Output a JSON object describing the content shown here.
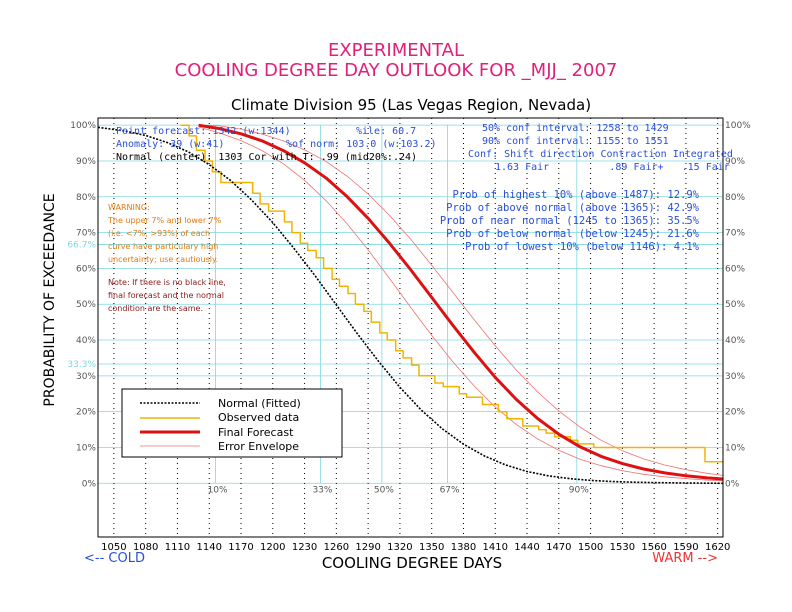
{
  "header": {
    "line1": "EXPERIMENTAL",
    "line2": "COOLING DEGREE DAY OUTLOOK FOR _MJJ_ 2007",
    "subtitle": "Climate Division 95 (Las Vegas Region, Nevada)"
  },
  "stats": {
    "point_forecast": "Point forecast: 1342 (w:1344)",
    "percentile": "%ile: 60.7",
    "anomaly": "Anomaly: 39 (w:41)",
    "pct_normal": "%of norm: 103.0 (w:103.2)",
    "normal_center": "Normal (center): 1303 Cor with T: .99 (mid20%:.24)",
    "conf50": "50% conf interval: 1258 to 1429",
    "conf90": "90% conf interval: 1155 to 1551",
    "conf_header": "Conf: Shift direction  Contraction  Integrated",
    "conf_values": "1.63 Fair          .89 Fair+   .15 Fair"
  },
  "probabilities": [
    "Prob of highest 10% (above 1487): 12.9%",
    "Prob of above normal (above 1365): 42.9%",
    "Prob of near normal (1245 to 1365): 35.5%",
    "Prob of below normal (below 1245): 21.6%",
    "Prob of lowest 10% (below 1146): 4.1%"
  ],
  "warning": {
    "lines": [
      "WARNING:",
      "The upper 7% and lower 7%",
      "(i.e. <7%, >93%) of each",
      "curve have particulary high",
      "uncertainty; use cautiously."
    ],
    "note": [
      "Note: If there is no black line,",
      "final forecast and  the normal",
      "condition are the same."
    ]
  },
  "legend": {
    "normal": "Normal (Fitted)",
    "observed": "Observed data",
    "forecast": "Final Forecast",
    "envelope": "Error Envelope"
  },
  "footer": {
    "cold": "<-- COLD",
    "warm": "WARM -->"
  },
  "colors": {
    "title": "#e0207a",
    "blue": "#2a4fd6",
    "warning_orange": "#e07a10",
    "warning_dark": "#8b1a1a",
    "cyan": "#7fd8e0",
    "normal": "#000000",
    "observed": "#f2b400",
    "forecast": "#dd1111",
    "envelope": "#f07070",
    "warm": "#ee3333"
  },
  "chart_data": {
    "type": "line",
    "title": "Climate Division 95 (Las Vegas Region, Nevada)",
    "xlabel": "COOLING DEGREE DAYS",
    "ylabel": "PROBABILITY OF EXCEEDANCE",
    "xlim": [
      1035,
      1625
    ],
    "ylim": [
      -15,
      102
    ],
    "x_ticks": [
      1050,
      1080,
      1110,
      1140,
      1170,
      1200,
      1230,
      1260,
      1290,
      1320,
      1350,
      1380,
      1410,
      1440,
      1470,
      1500,
      1530,
      1560,
      1590,
      1620
    ],
    "y_ticks_left": [
      "0%",
      "10%",
      "20%",
      "30%",
      "40%",
      "50%",
      "60%",
      "70%",
      "80%",
      "90%",
      "100%"
    ],
    "y_ticks_right": [
      "0%",
      "10%",
      "20%",
      "30%",
      "40%",
      "50%",
      "60%",
      "70%",
      "80%",
      "90%",
      "100%"
    ],
    "y_tick_values": [
      0,
      10,
      20,
      30,
      40,
      50,
      60,
      70,
      80,
      90,
      100
    ],
    "percentile_lines": [
      {
        "x": 1146,
        "label": "10%"
      },
      {
        "x": 1245,
        "label": "33%"
      },
      {
        "x": 1303,
        "label": "50%"
      },
      {
        "x": 1365,
        "label": "67%"
      },
      {
        "x": 1487,
        "label": "90%"
      }
    ],
    "prob_lines": [
      {
        "y": 66.7,
        "label": "66.7%"
      },
      {
        "y": 33.3,
        "label": "33.3%"
      }
    ],
    "series": [
      {
        "name": "Normal (Fitted)",
        "x": [
          1035,
          1060,
          1080,
          1100,
          1120,
          1140,
          1160,
          1180,
          1200,
          1220,
          1240,
          1260,
          1280,
          1300,
          1320,
          1340,
          1360,
          1380,
          1400,
          1420,
          1440,
          1460,
          1480,
          1500,
          1520,
          1540,
          1560,
          1580,
          1600,
          1625
        ],
        "y": [
          99.4,
          98.4,
          97.1,
          95.2,
          92.6,
          89.0,
          84.6,
          79.1,
          72.8,
          65.6,
          57.9,
          49.8,
          41.7,
          34.0,
          26.8,
          20.5,
          15.2,
          10.9,
          7.6,
          5.1,
          3.3,
          2.1,
          1.3,
          0.8,
          0.5,
          0.3,
          0.2,
          0.1,
          0.05,
          0.0
        ]
      },
      {
        "name": "Observed data",
        "x": [
          1113,
          1121,
          1128,
          1136,
          1143,
          1151,
          1158,
          1166,
          1173,
          1181,
          1188,
          1196,
          1203,
          1211,
          1218,
          1226,
          1233,
          1241,
          1248,
          1256,
          1263,
          1271,
          1278,
          1286,
          1293,
          1301,
          1308,
          1316,
          1323,
          1331,
          1338,
          1346,
          1353,
          1361,
          1368,
          1376,
          1383,
          1391,
          1398,
          1406,
          1413,
          1421,
          1428,
          1436,
          1443,
          1451,
          1458,
          1466,
          1473,
          1481,
          1488,
          1496,
          1503,
          1511,
          1518,
          1526,
          1533,
          1541,
          1548,
          1556,
          1563,
          1571,
          1578,
          1586,
          1593,
          1601,
          1608,
          1616,
          1625
        ],
        "y": [
          100,
          97,
          93,
          90,
          87,
          84,
          84,
          84,
          84,
          81,
          78,
          76,
          76,
          73,
          70,
          67,
          65,
          63,
          60,
          57,
          55,
          53,
          50,
          48,
          45,
          42,
          40,
          37,
          35,
          33,
          30,
          30,
          28,
          27,
          27,
          25,
          24,
          24,
          22,
          22,
          20,
          18,
          18,
          16,
          16,
          15,
          14,
          13,
          13,
          12,
          11,
          11,
          10,
          10,
          10,
          10,
          10,
          10,
          10,
          10,
          10,
          10,
          10,
          10,
          10,
          10,
          6,
          6,
          6
        ]
      },
      {
        "name": "Final Forecast",
        "x": [
          1130,
          1150,
          1170,
          1190,
          1210,
          1230,
          1250,
          1270,
          1290,
          1310,
          1330,
          1350,
          1370,
          1390,
          1410,
          1430,
          1450,
          1470,
          1490,
          1510,
          1530,
          1550,
          1570,
          1590,
          1610,
          1625
        ],
        "y": [
          100.0,
          99.0,
          97.6,
          95.6,
          92.9,
          89.5,
          85.3,
          80.1,
          74.0,
          67.1,
          59.7,
          51.9,
          44.1,
          36.6,
          29.6,
          23.4,
          18.1,
          13.7,
          10.2,
          7.5,
          5.5,
          4.0,
          2.9,
          2.1,
          1.5,
          1.2
        ]
      },
      {
        "name": "Error Envelope (upper)",
        "x": [
          1130,
          1150,
          1170,
          1190,
          1210,
          1230,
          1250,
          1270,
          1290,
          1310,
          1330,
          1350,
          1370,
          1390,
          1410,
          1430,
          1450,
          1470,
          1490,
          1510,
          1530,
          1550,
          1570,
          1590,
          1610,
          1625
        ],
        "y": [
          100.0,
          99.8,
          98.9,
          97.5,
          95.6,
          93.1,
          89.9,
          85.8,
          80.8,
          74.9,
          68.2,
          60.9,
          53.3,
          45.7,
          38.4,
          31.6,
          25.5,
          20.2,
          15.7,
          12.0,
          9.1,
          6.8,
          5.1,
          3.8,
          2.8,
          2.2
        ]
      },
      {
        "name": "Error Envelope (lower)",
        "x": [
          1130,
          1150,
          1170,
          1190,
          1210,
          1230,
          1250,
          1270,
          1290,
          1310,
          1330,
          1350,
          1370,
          1390,
          1410,
          1430,
          1450,
          1470,
          1490,
          1510,
          1530,
          1550,
          1570,
          1590,
          1610,
          1625
        ],
        "y": [
          99.5,
          97.8,
          95.7,
          92.9,
          89.2,
          84.6,
          79.0,
          72.5,
          65.2,
          57.3,
          49.2,
          41.3,
          33.9,
          27.2,
          21.3,
          16.4,
          12.4,
          9.2,
          6.7,
          4.9,
          3.5,
          2.5,
          1.8,
          1.3,
          0.9,
          0.7
        ]
      }
    ]
  }
}
